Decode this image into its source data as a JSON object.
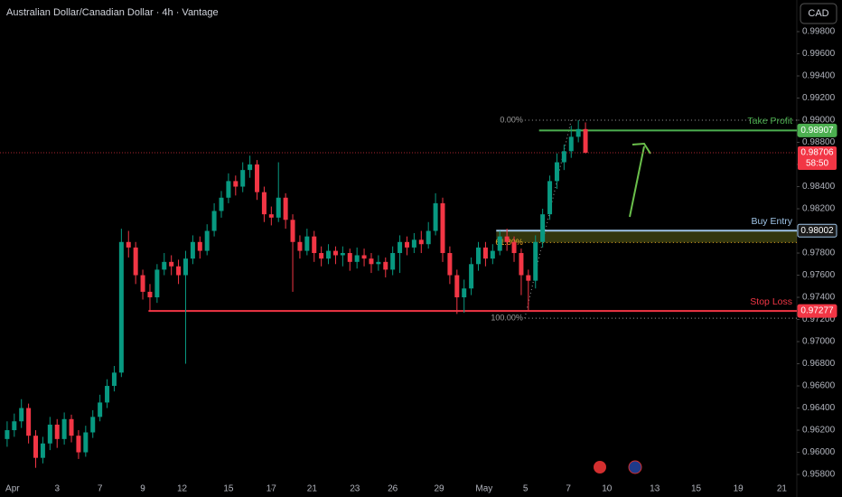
{
  "chart_data": {
    "type": "candlestick",
    "title": "Australian Dollar/Canadian Dollar · 4h · Vantage",
    "currency": "CAD",
    "up_color": "#089981",
    "down_color": "#f23645",
    "open": [
      0.9612,
      0.962,
      0.9628,
      0.964,
      0.9615,
      0.9595,
      0.9608,
      0.9625,
      0.9612,
      0.963,
      0.9615,
      0.96,
      0.9618,
      0.9632,
      0.9645,
      0.966,
      0.9672,
      0.979,
      0.9785,
      0.976,
      0.9745,
      0.974,
      0.9765,
      0.9772,
      0.9768,
      0.976,
      0.9775,
      0.979,
      0.9782,
      0.98,
      0.9818,
      0.983,
      0.9845,
      0.984,
      0.9855,
      0.986,
      0.9835,
      0.9815,
      0.9812,
      0.983,
      0.981,
      0.979,
      0.9782,
      0.9795,
      0.978,
      0.9775,
      0.9782,
      0.9778,
      0.978,
      0.9772,
      0.9778,
      0.9775,
      0.977,
      0.9772,
      0.9765,
      0.978,
      0.979,
      0.9785,
      0.9792,
      0.9788,
      0.98,
      0.9825,
      0.978,
      0.976,
      0.974,
      0.9748,
      0.977,
      0.9785,
      0.9775,
      0.9782,
      0.9795,
      0.979,
      0.978,
      0.976,
      0.9755,
      0.979,
      0.9815,
      0.9845,
      0.9862,
      0.9872,
      0.9885,
      0.9892
    ],
    "high": [
      0.9628,
      0.9635,
      0.9648,
      0.9644,
      0.962,
      0.9614,
      0.9632,
      0.963,
      0.9636,
      0.9634,
      0.962,
      0.9624,
      0.9638,
      0.9652,
      0.9666,
      0.9678,
      0.9802,
      0.98,
      0.979,
      0.9765,
      0.9752,
      0.977,
      0.978,
      0.9778,
      0.9774,
      0.9782,
      0.9796,
      0.9795,
      0.9806,
      0.9825,
      0.9836,
      0.9852,
      0.985,
      0.9862,
      0.9868,
      0.9864,
      0.984,
      0.9822,
      0.9862,
      0.9834,
      0.9815,
      0.9796,
      0.9802,
      0.98,
      0.9786,
      0.9788,
      0.9786,
      0.9786,
      0.9784,
      0.9785,
      0.9784,
      0.978,
      0.9778,
      0.9776,
      0.9786,
      0.9796,
      0.9795,
      0.9798,
      0.98,
      0.9808,
      0.9834,
      0.983,
      0.9786,
      0.9765,
      0.9756,
      0.9776,
      0.979,
      0.979,
      0.9788,
      0.98,
      0.9802,
      0.9795,
      0.9784,
      0.9765,
      0.9796,
      0.982,
      0.985,
      0.987,
      0.9878,
      0.9895,
      0.99,
      0.9898
    ],
    "low": [
      0.9605,
      0.9614,
      0.9622,
      0.9608,
      0.9586,
      0.959,
      0.9602,
      0.9604,
      0.9607,
      0.9609,
      0.9594,
      0.9596,
      0.9613,
      0.9628,
      0.964,
      0.9655,
      0.9668,
      0.9776,
      0.9752,
      0.9738,
      0.9728,
      0.9735,
      0.976,
      0.976,
      0.9752,
      0.968,
      0.977,
      0.9775,
      0.9778,
      0.9795,
      0.9812,
      0.9825,
      0.9832,
      0.9835,
      0.9848,
      0.9828,
      0.9808,
      0.9805,
      0.9808,
      0.9802,
      0.9745,
      0.9775,
      0.9778,
      0.9772,
      0.9768,
      0.977,
      0.977,
      0.9768,
      0.9764,
      0.9766,
      0.9768,
      0.9762,
      0.9764,
      0.9758,
      0.976,
      0.9762,
      0.9778,
      0.978,
      0.978,
      0.9784,
      0.9796,
      0.9772,
      0.9752,
      0.9725,
      0.9726,
      0.9742,
      0.9764,
      0.9768,
      0.977,
      0.9778,
      0.9782,
      0.9772,
      0.9742,
      0.9728,
      0.9748,
      0.9785,
      0.981,
      0.9838,
      0.9855,
      0.9866,
      0.988,
      0.987
    ],
    "close": [
      0.962,
      0.9628,
      0.964,
      0.9615,
      0.9595,
      0.9608,
      0.9625,
      0.9612,
      0.963,
      0.9615,
      0.96,
      0.9618,
      0.9632,
      0.9645,
      0.966,
      0.9672,
      0.979,
      0.9785,
      0.976,
      0.9745,
      0.974,
      0.9765,
      0.9772,
      0.9768,
      0.976,
      0.9775,
      0.979,
      0.9782,
      0.98,
      0.9818,
      0.983,
      0.9845,
      0.984,
      0.9855,
      0.986,
      0.9835,
      0.9815,
      0.9812,
      0.983,
      0.981,
      0.979,
      0.9782,
      0.9795,
      0.978,
      0.9775,
      0.9782,
      0.9778,
      0.978,
      0.9772,
      0.9778,
      0.9775,
      0.977,
      0.9772,
      0.9765,
      0.978,
      0.979,
      0.9785,
      0.9792,
      0.9788,
      0.98,
      0.9825,
      0.978,
      0.976,
      0.974,
      0.9748,
      0.977,
      0.9785,
      0.9775,
      0.9782,
      0.9795,
      0.979,
      0.978,
      0.976,
      0.9755,
      0.979,
      0.9815,
      0.9845,
      0.9862,
      0.9872,
      0.9885,
      0.9892,
      0.98706
    ],
    "xlim": [
      -1,
      110.6
    ],
    "xticks": [
      {
        "value": 0.75,
        "label": "Apr"
      },
      {
        "value": 7,
        "label": "3"
      },
      {
        "value": 13,
        "label": "7"
      },
      {
        "value": 19,
        "label": "9"
      },
      {
        "value": 24.5,
        "label": "12"
      },
      {
        "value": 31,
        "label": "15"
      },
      {
        "value": 37,
        "label": "17"
      },
      {
        "value": 42.7,
        "label": "21"
      },
      {
        "value": 48.7,
        "label": "23"
      },
      {
        "value": 54,
        "label": "26"
      },
      {
        "value": 60.5,
        "label": "29"
      },
      {
        "value": 66.8,
        "label": "May"
      },
      {
        "value": 72.6,
        "label": "5"
      },
      {
        "value": 78.6,
        "label": "7"
      },
      {
        "value": 84,
        "label": "10"
      },
      {
        "value": 90.7,
        "label": "13"
      },
      {
        "value": 96.5,
        "label": "15"
      },
      {
        "value": 102.4,
        "label": "19"
      },
      {
        "value": 108.5,
        "label": "21"
      }
    ],
    "ylim": [
      0.95678,
      1.000857
    ],
    "yticks": [
      {
        "value": 0.958,
        "label": "0.95800"
      },
      {
        "value": 0.96,
        "label": "0.96000"
      },
      {
        "value": 0.962,
        "label": "0.96200"
      },
      {
        "value": 0.964,
        "label": "0.96400"
      },
      {
        "value": 0.966,
        "label": "0.96600"
      },
      {
        "value": 0.968,
        "label": "0.96800"
      },
      {
        "value": 0.97,
        "label": "0.97000"
      },
      {
        "value": 0.972,
        "label": "0.97200"
      },
      {
        "value": 0.974,
        "label": "0.97400"
      },
      {
        "value": 0.976,
        "label": "0.97600"
      },
      {
        "value": 0.978,
        "label": "0.97800"
      },
      {
        "value": 0.98,
        "label": "0.98000"
      },
      {
        "value": 0.982,
        "label": "0.98200"
      },
      {
        "value": 0.984,
        "label": "0.98400"
      },
      {
        "value": 0.986,
        "label": "0.98600"
      },
      {
        "value": 0.988,
        "label": "0.98800"
      },
      {
        "value": 0.99,
        "label": "0.99000"
      },
      {
        "value": 0.992,
        "label": "0.99200"
      },
      {
        "value": 0.994,
        "label": "0.99400"
      },
      {
        "value": 0.996,
        "label": "0.99600"
      },
      {
        "value": 0.998,
        "label": "0.99800"
      }
    ],
    "current_price": {
      "value": 0.98706,
      "countdown": "58:50",
      "color": "#f23645"
    },
    "levels": [
      {
        "name": "Take Profit",
        "value": 0.98907,
        "color": "#4caf50"
      },
      {
        "name": "Buy Entry",
        "value": 0.98002,
        "color": "#9fc5e8"
      },
      {
        "name": "Stop Loss",
        "value": 0.97277,
        "color": "#f23645"
      }
    ],
    "fib_levels": [
      {
        "label": "0.00%",
        "value": 0.99
      },
      {
        "label": "61.80%",
        "value": 0.97895
      },
      {
        "label": "100.00%",
        "value": 0.97212
      }
    ]
  }
}
